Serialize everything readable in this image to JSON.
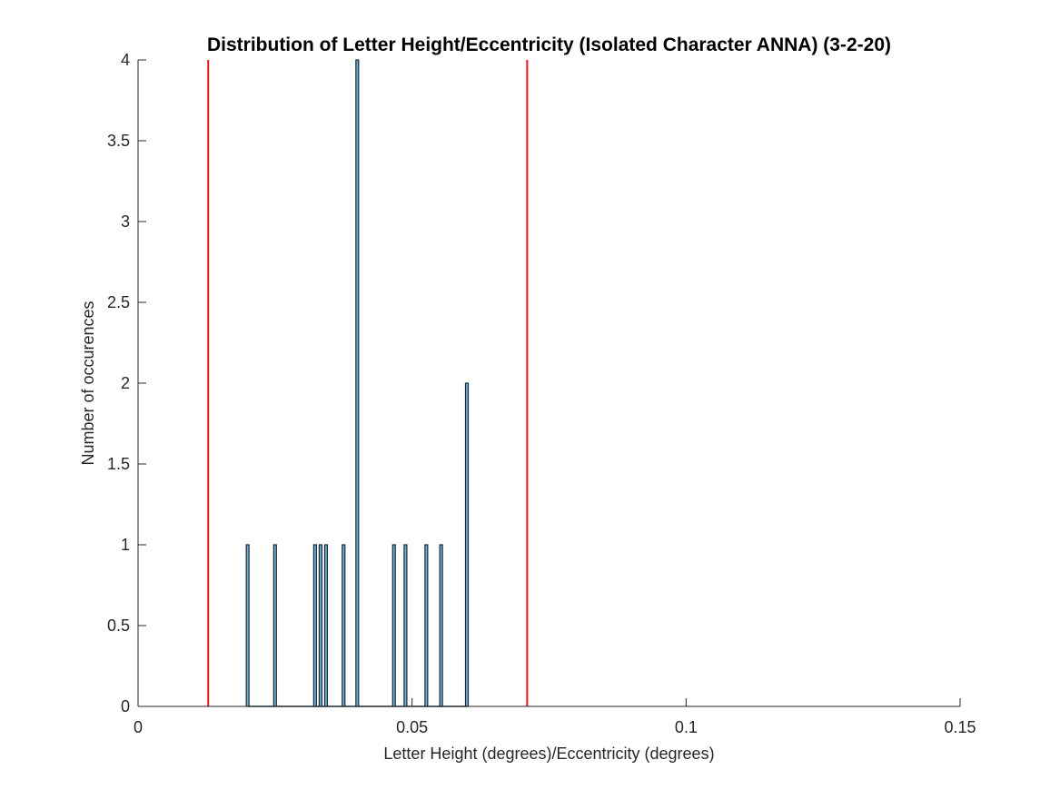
{
  "chart_data": {
    "type": "bar",
    "title": "Distribution of Letter Height/Eccentricity (Isolated Character ANNA) (3-2-20)",
    "xlabel": "Letter Height (degrees)/Eccentricity (degrees)",
    "ylabel": "Number of occurences",
    "xlim": [
      0,
      0.15
    ],
    "ylim": [
      0,
      4
    ],
    "xticks": [
      0,
      0.05,
      0.1,
      0.15
    ],
    "xtick_labels": [
      "0",
      "0.05",
      "0.1",
      "0.15"
    ],
    "yticks": [
      0,
      0.5,
      1,
      1.5,
      2,
      2.5,
      3,
      3.5,
      4
    ],
    "ytick_labels": [
      "0",
      "0.5",
      "1",
      "1.5",
      "2",
      "2.5",
      "3",
      "3.5",
      "4"
    ],
    "grid": false,
    "bar_color": "#6baed6",
    "bar_edge_color": "#1f2a36",
    "reference_line_color": "#e8141b",
    "bars": [
      {
        "x": 0.02,
        "value": 1
      },
      {
        "x": 0.025,
        "value": 1
      },
      {
        "x": 0.0323,
        "value": 1
      },
      {
        "x": 0.0333,
        "value": 1
      },
      {
        "x": 0.0343,
        "value": 1
      },
      {
        "x": 0.0375,
        "value": 1
      },
      {
        "x": 0.04,
        "value": 4
      },
      {
        "x": 0.0467,
        "value": 1
      },
      {
        "x": 0.0488,
        "value": 1
      },
      {
        "x": 0.0526,
        "value": 1
      },
      {
        "x": 0.0553,
        "value": 1
      },
      {
        "x": 0.06,
        "value": 2
      }
    ],
    "reference_lines": [
      {
        "x": 0.0128
      },
      {
        "x": 0.071
      }
    ]
  }
}
